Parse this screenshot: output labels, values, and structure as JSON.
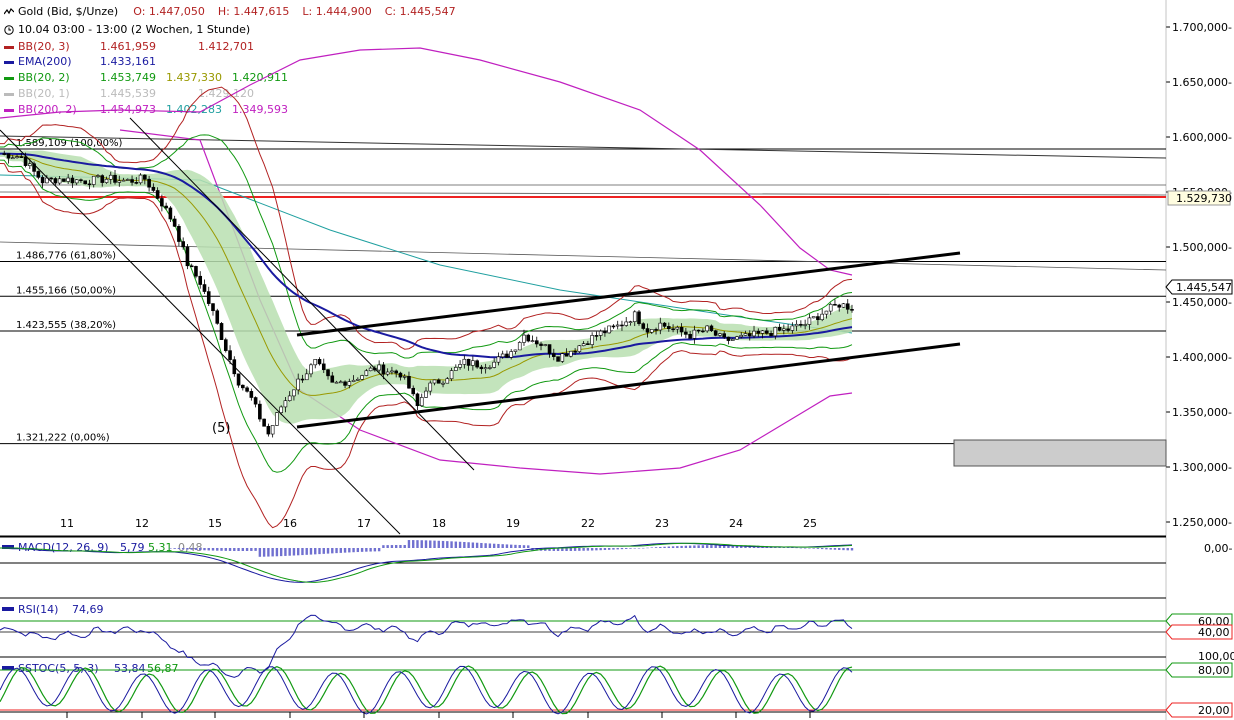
{
  "header": {
    "title": "Gold (Bid, $/Unze)",
    "ohlc": [
      {
        "label": "O:",
        "value": "1.447,050"
      },
      {
        "label": "H:",
        "value": "1.447,615"
      },
      {
        "label": "L:",
        "value": "1.444,900"
      },
      {
        "label": "C:",
        "value": "1.445,547"
      }
    ],
    "period": "10.04 03:00 - 13:00 (2 Wochen, 1 Stunde)"
  },
  "legend": [
    {
      "name": "BB(20, 3)",
      "color": "#b22222",
      "values": [
        "1.461,959",
        "",
        "1.412,701"
      ],
      "value_colors": [
        "#b22222",
        "#b22222",
        "#b22222"
      ]
    },
    {
      "name": "EMA(200)",
      "color": "#1a1aa0",
      "values": [
        "1.433,161"
      ],
      "value_colors": [
        "#1a1aa0"
      ]
    },
    {
      "name": "BB(20, 2)",
      "color": "#119911",
      "values": [
        "1.453,749",
        "1.437,330",
        "1.420,911"
      ],
      "value_colors": [
        "#119911",
        "#999900",
        "#119911"
      ]
    },
    {
      "name": "BB(20, 1)",
      "color": "#bbbbbb",
      "values": [
        "1.445,539",
        "",
        "1.429,120"
      ],
      "value_colors": [
        "#bbbbbb",
        "#bbbbbb",
        "#bbbbbb"
      ]
    },
    {
      "name": "BB(200, 2)",
      "color": "#c020c0",
      "values": [
        "1.454,973",
        "1.402,283",
        "1.349,593"
      ],
      "value_colors": [
        "#c020c0",
        "#20a0a0",
        "#c020c0"
      ]
    }
  ],
  "chart_data": [
    {
      "type": "candlestick",
      "title": "Gold (Bid, $/Unze)",
      "x_labels": [
        "11",
        "12",
        "15",
        "16",
        "17",
        "18",
        "19",
        "22",
        "23",
        "24",
        "25"
      ],
      "y_ticks": [
        "1.700,000",
        "1.650,000",
        "1.600,000",
        "1.550,000",
        "1.500,000",
        "1.450,000",
        "1.400,000",
        "1.350,000",
        "1.300,000",
        "1.250,000"
      ],
      "ylim": [
        1240,
        1720
      ],
      "last_price": "1.445,547",
      "marker_price": "1.529,730",
      "fib_levels": [
        {
          "label": "1.589,109 (100,00%)",
          "value": 1589.1
        },
        {
          "label": "1.486,776 (61,80%)",
          "value": 1486.8
        },
        {
          "label": "1.455,166 (50,00%)",
          "value": 1455.2
        },
        {
          "label": "1.423,555 (38,20%)",
          "value": 1423.6
        },
        {
          "label": "1.321,222 (0,00%)",
          "value": 1321.2
        }
      ],
      "wave_label": "(5)",
      "close_path": [
        [
          0,
          1585
        ],
        [
          5,
          1582
        ],
        [
          8,
          1568
        ],
        [
          10,
          1560
        ],
        [
          14,
          1562
        ],
        [
          20,
          1560
        ],
        [
          25,
          1562
        ],
        [
          30,
          1560
        ],
        [
          34,
          1562
        ],
        [
          38,
          1540
        ],
        [
          41,
          1520
        ],
        [
          44,
          1485
        ],
        [
          47,
          1468
        ],
        [
          50,
          1440
        ],
        [
          53,
          1408
        ],
        [
          56,
          1378
        ],
        [
          59,
          1362
        ],
        [
          61,
          1345
        ],
        [
          63,
          1330
        ],
        [
          66,
          1355
        ],
        [
          70,
          1378
        ],
        [
          74,
          1395
        ],
        [
          78,
          1375
        ],
        [
          83,
          1380
        ],
        [
          88,
          1390
        ],
        [
          94,
          1385
        ],
        [
          96,
          1372
        ],
        [
          98,
          1355
        ],
        [
          100,
          1372
        ],
        [
          104,
          1380
        ],
        [
          109,
          1395
        ],
        [
          113,
          1393
        ],
        [
          116,
          1395
        ],
        [
          120,
          1405
        ],
        [
          123,
          1420
        ],
        [
          127,
          1412
        ],
        [
          131,
          1400
        ],
        [
          135,
          1408
        ],
        [
          140,
          1420
        ],
        [
          145,
          1428
        ],
        [
          149,
          1438
        ],
        [
          152,
          1425
        ],
        [
          155,
          1430
        ],
        [
          158,
          1425
        ],
        [
          162,
          1420
        ],
        [
          166,
          1425
        ],
        [
          170,
          1415
        ],
        [
          175,
          1418
        ],
        [
          180,
          1422
        ],
        [
          185,
          1425
        ],
        [
          189,
          1430
        ],
        [
          193,
          1440
        ],
        [
          197,
          1448
        ],
        [
          200,
          1445
        ]
      ]
    },
    {
      "type": "line",
      "title": "MACD(12, 26, 9)",
      "values_shown": [
        "5,79",
        "5,31",
        "0,48"
      ],
      "y_ticks": [
        "0,00"
      ]
    },
    {
      "type": "line",
      "title": "RSI(14)",
      "value_shown": "74,69",
      "y_ticks": [
        "60,00",
        "40,00"
      ]
    },
    {
      "type": "line",
      "title": "SSTOC(5, 5, 3)",
      "values_shown": [
        "53,84",
        "56,87"
      ],
      "y_ticks": [
        "100,00",
        "80,00",
        "20,00"
      ]
    }
  ],
  "colors": {
    "bb3": "#b22222",
    "ema": "#1a1aa0",
    "bb2": "#119911",
    "mid": "#999900",
    "bb1": "#bbbbbb",
    "bb200": "#c020c0",
    "bb200mid": "#20a0a0",
    "band": "#b8dfb0"
  },
  "icons": [
    "wave-icon",
    "clock-icon"
  ]
}
